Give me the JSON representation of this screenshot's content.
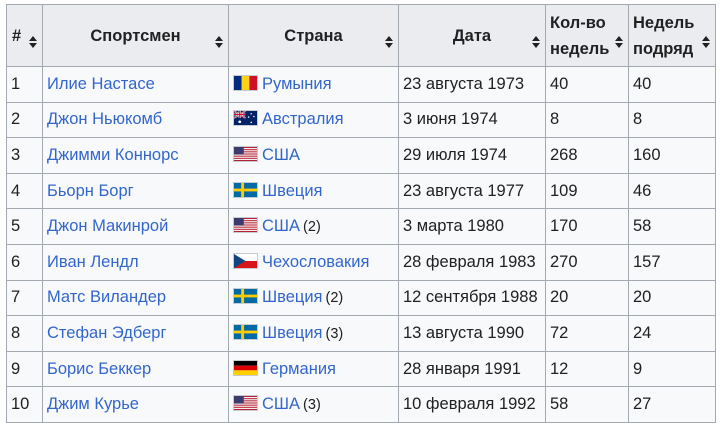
{
  "headers": [
    {
      "label": "#",
      "name": "col-number"
    },
    {
      "label": "Спортсмен",
      "name": "col-athlete"
    },
    {
      "label": "Страна",
      "name": "col-country"
    },
    {
      "label": "Дата",
      "name": "col-date"
    },
    {
      "label": "Кол-во недель",
      "name": "col-weeks-total"
    },
    {
      "label": "Недель подряд",
      "name": "col-weeks-consecutive"
    }
  ],
  "rows": [
    {
      "num": "1",
      "athlete": "Илие Настасе",
      "flag": "romania-flag-icon",
      "country": "Румыния",
      "note": "",
      "date": "23 августа 1973",
      "weeks": "40",
      "consecutive": "40"
    },
    {
      "num": "2",
      "athlete": "Джон Ньюкомб",
      "flag": "australia-flag-icon",
      "country": "Австралия",
      "note": "",
      "date": "3 июня 1974",
      "weeks": "8",
      "consecutive": "8"
    },
    {
      "num": "3",
      "athlete": "Джимми Коннорс",
      "flag": "usa-flag-icon",
      "country": "США",
      "note": "",
      "date": "29 июля 1974",
      "weeks": "268",
      "consecutive": "160"
    },
    {
      "num": "4",
      "athlete": "Бьорн Борг",
      "flag": "sweden-flag-icon",
      "country": "Швеция",
      "note": "",
      "date": "23 августа 1977",
      "weeks": "109",
      "consecutive": "46"
    },
    {
      "num": "5",
      "athlete": "Джон Макинрой",
      "flag": "usa-flag-icon",
      "country": "США",
      "note": "(2)",
      "date": "3 марта 1980",
      "weeks": "170",
      "consecutive": "58"
    },
    {
      "num": "6",
      "athlete": "Иван Лендл",
      "flag": "czechoslovakia-flag-icon",
      "country": "Чехословакия",
      "note": "",
      "date": "28 февраля 1983",
      "weeks": "270",
      "consecutive": "157"
    },
    {
      "num": "7",
      "athlete": "Матс Виландер",
      "flag": "sweden-flag-icon",
      "country": "Швеция",
      "note": "(2)",
      "date": "12 сентября 1988",
      "weeks": "20",
      "consecutive": "20"
    },
    {
      "num": "8",
      "athlete": "Стефан Эдберг",
      "flag": "sweden-flag-icon",
      "country": "Швеция",
      "note": "(3)",
      "date": "13 августа 1990",
      "weeks": "72",
      "consecutive": "24"
    },
    {
      "num": "9",
      "athlete": "Борис Беккер",
      "flag": "germany-flag-icon",
      "country": "Германия",
      "note": "",
      "date": "28 января 1991",
      "weeks": "12",
      "consecutive": "9"
    },
    {
      "num": "10",
      "athlete": "Джим Курье",
      "flag": "usa-flag-icon",
      "country": "США",
      "note": "(3)",
      "date": "10 февраля 1992",
      "weeks": "58",
      "consecutive": "27"
    }
  ],
  "colors": {
    "link": "#3366cc",
    "header_bg": "#eaecf0",
    "cell_bg": "#f8f9fa",
    "border": "#a2a9b1"
  }
}
